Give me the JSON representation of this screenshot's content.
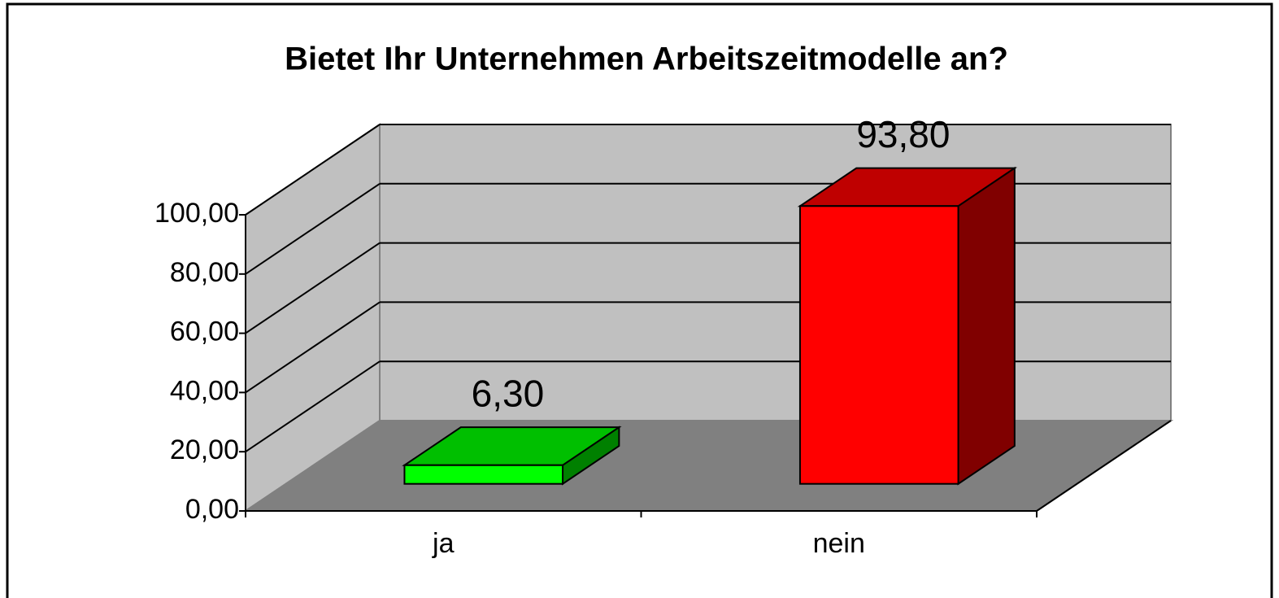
{
  "chart_data": {
    "type": "bar3d",
    "title": "Bietet Ihr Unternehmen Arbeitszeitmodelle an?",
    "categories": [
      "ja",
      "nein"
    ],
    "values": [
      6.3,
      93.8
    ],
    "value_labels": [
      "6,30",
      "93,80"
    ],
    "colors": [
      "#00ff00",
      "#ff0000"
    ],
    "ylim": [
      0,
      100
    ],
    "yticks": [
      {
        "value": 0,
        "label": "0,00"
      },
      {
        "value": 20,
        "label": "20,00"
      },
      {
        "value": 40,
        "label": "40,00"
      },
      {
        "value": 60,
        "label": "60,00"
      },
      {
        "value": 80,
        "label": "80,00"
      },
      {
        "value": 100,
        "label": "100,00"
      }
    ],
    "grid": true
  }
}
